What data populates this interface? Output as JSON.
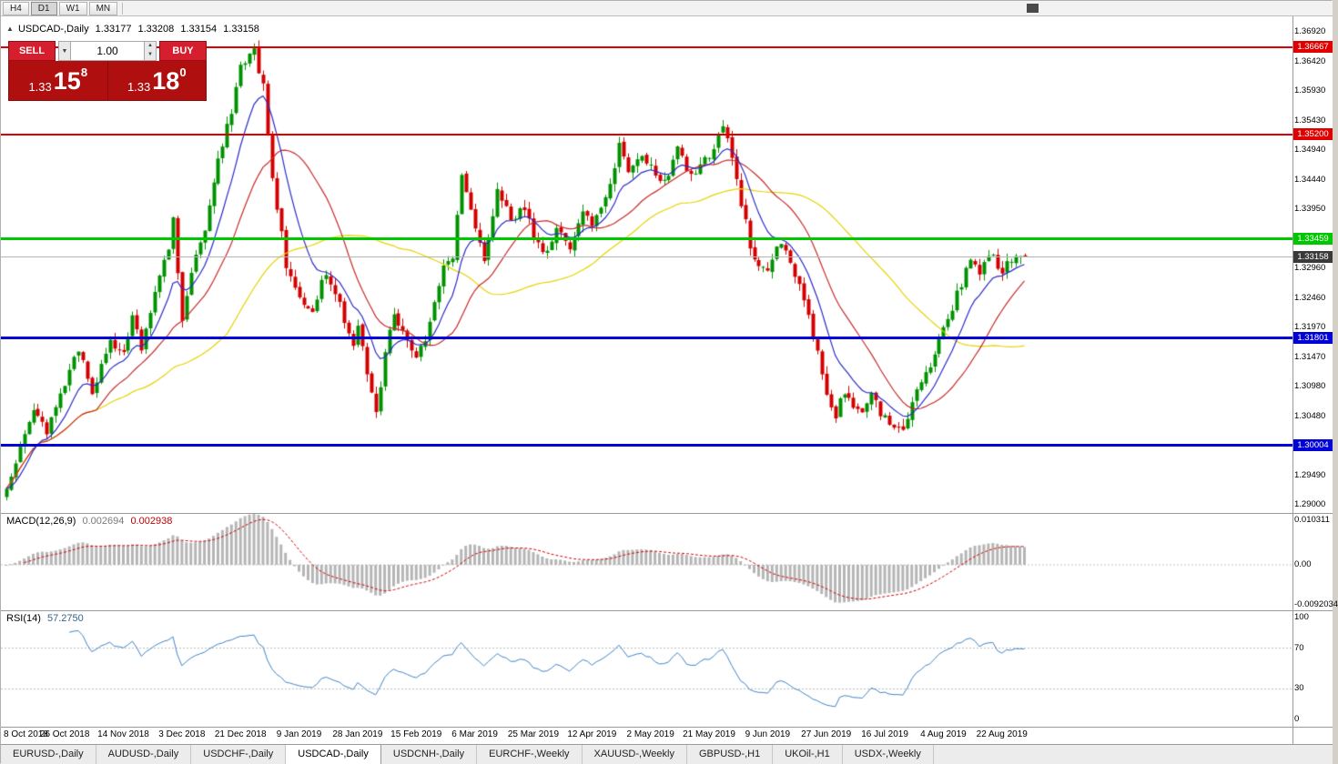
{
  "icons": {
    "collapse_arrow": "▲",
    "dropdown_arrow": "▼",
    "spinner_up": "▲",
    "spinner_down": "▼"
  },
  "toolbar": {
    "timeframes": [
      {
        "label": "H4",
        "active": false
      },
      {
        "label": "D1",
        "active": true
      },
      {
        "label": "W1",
        "active": false
      },
      {
        "label": "MN",
        "active": false
      }
    ]
  },
  "chart_header": {
    "symbol_period": "USDCAD-,Daily",
    "open": "1.33177",
    "high": "1.33208",
    "low": "1.33154",
    "close": "1.33158"
  },
  "trade_panel": {
    "sell_label": "SELL",
    "buy_label": "BUY",
    "volume": "1.00",
    "sell_price": {
      "prefix": "1.33",
      "big": "15",
      "sup": "8"
    },
    "buy_price": {
      "prefix": "1.33",
      "big": "18",
      "sup": "0"
    }
  },
  "price_axis": {
    "ticks": [
      "1.36920",
      "1.36420",
      "1.35930",
      "1.35430",
      "1.34940",
      "1.34440",
      "1.33950",
      "1.32960",
      "1.32460",
      "1.31970",
      "1.31470",
      "1.30980",
      "1.30480",
      "1.29490",
      "1.29000"
    ]
  },
  "date_axis": [
    "8 Oct 2018",
    "26 Oct 2018",
    "14 Nov 2018",
    "3 Dec 2018",
    "21 Dec 2018",
    "9 Jan 2019",
    "28 Jan 2019",
    "15 Feb 2019",
    "6 Mar 2019",
    "25 Mar 2019",
    "12 Apr 2019",
    "2 May 2019",
    "21 May 2019",
    "9 Jun 2019",
    "27 Jun 2019",
    "16 Jul 2019",
    "4 Aug 2019",
    "22 Aug 2019"
  ],
  "tabs": [
    {
      "label": "EURUSD-,Daily",
      "active": false
    },
    {
      "label": "AUDUSD-,Daily",
      "active": false
    },
    {
      "label": "USDCHF-,Daily",
      "active": false
    },
    {
      "label": "USDCAD-,Daily",
      "active": true
    },
    {
      "label": "USDCNH-,Daily",
      "active": false
    },
    {
      "label": "EURCHF-,Weekly",
      "active": false
    },
    {
      "label": "XAUUSD-,Weekly",
      "active": false
    },
    {
      "label": "GBPUSD-,H1",
      "active": false
    },
    {
      "label": "UKOil-,H1",
      "active": false
    },
    {
      "label": "USDX-,Weekly",
      "active": false
    }
  ],
  "colors": {
    "bull": "#009200",
    "bear": "#d40000",
    "ma_fast": "#2a2ac8",
    "ma_medium": "#c82a2a",
    "ma_slow": "#e6d200",
    "level_red": "#e00000",
    "level_green": "#00c800",
    "level_blue": "#0000d8",
    "bid_line": "#b4b4b4",
    "bid_tag_bg": "#3a3a3a",
    "macd_hist": "#b5b5b5",
    "macd_signal": "#cc0000",
    "rsi_line": "#3f84c4"
  },
  "chart_data": {
    "type": "candlestick",
    "symbol": "USDCAD-",
    "timeframe": "Daily",
    "bars": 227,
    "bars_per_x_tick": 13,
    "y_axis_range": [
      1.2886,
      1.3718
    ],
    "last_ohlc": {
      "open": 1.33177,
      "high": 1.33208,
      "low": 1.33154,
      "close": 1.33158
    },
    "close_path_anchors": [
      [
        0,
        1.2925
      ],
      [
        3,
        1.3
      ],
      [
        6,
        1.3062
      ],
      [
        9,
        1.302
      ],
      [
        13,
        1.3105
      ],
      [
        16,
        1.3162
      ],
      [
        19,
        1.3082
      ],
      [
        23,
        1.3175
      ],
      [
        26,
        1.3152
      ],
      [
        28,
        1.3222
      ],
      [
        30,
        1.3155
      ],
      [
        33,
        1.3262
      ],
      [
        36,
        1.333
      ],
      [
        37,
        1.3378
      ],
      [
        39,
        1.3205
      ],
      [
        41,
        1.3292
      ],
      [
        44,
        1.336
      ],
      [
        47,
        1.3472
      ],
      [
        50,
        1.3562
      ],
      [
        52,
        1.3638
      ],
      [
        55,
        1.3662
      ],
      [
        57,
        1.3598
      ],
      [
        59,
        1.3452
      ],
      [
        62,
        1.3302
      ],
      [
        65,
        1.3242
      ],
      [
        68,
        1.3222
      ],
      [
        71,
        1.3292
      ],
      [
        74,
        1.3232
      ],
      [
        77,
        1.3168
      ],
      [
        78,
        1.3205
      ],
      [
        80,
        1.3122
      ],
      [
        82,
        1.3048
      ],
      [
        84,
        1.3162
      ],
      [
        86,
        1.3222
      ],
      [
        88,
        1.3192
      ],
      [
        91,
        1.3152
      ],
      [
        93,
        1.3182
      ],
      [
        95,
        1.3242
      ],
      [
        97,
        1.3302
      ],
      [
        99,
        1.3312
      ],
      [
        101,
        1.3448
      ],
      [
        104,
        1.3362
      ],
      [
        106,
        1.3315
      ],
      [
        109,
        1.3422
      ],
      [
        112,
        1.3382
      ],
      [
        115,
        1.3392
      ],
      [
        117,
        1.3352
      ],
      [
        119,
        1.3315
      ],
      [
        122,
        1.3362
      ],
      [
        125,
        1.3335
      ],
      [
        128,
        1.3392
      ],
      [
        130,
        1.3362
      ],
      [
        133,
        1.3412
      ],
      [
        136,
        1.3498
      ],
      [
        138,
        1.3452
      ],
      [
        141,
        1.3482
      ],
      [
        143,
        1.3462
      ],
      [
        146,
        1.3442
      ],
      [
        149,
        1.3492
      ],
      [
        152,
        1.3452
      ],
      [
        156,
        1.3482
      ],
      [
        159,
        1.3538
      ],
      [
        161,
        1.3482
      ],
      [
        163,
        1.3402
      ],
      [
        166,
        1.3305
      ],
      [
        169,
        1.3292
      ],
      [
        171,
        1.3338
      ],
      [
        174,
        1.3312
      ],
      [
        177,
        1.3242
      ],
      [
        180,
        1.3152
      ],
      [
        182,
        1.3082
      ],
      [
        184,
        1.3052
      ],
      [
        186,
        1.3092
      ],
      [
        189,
        1.3052
      ],
      [
        192,
        1.3082
      ],
      [
        195,
        1.3042
      ],
      [
        198,
        1.3022
      ],
      [
        200,
        1.3038
      ],
      [
        202,
        1.3092
      ],
      [
        205,
        1.3132
      ],
      [
        208,
        1.3192
      ],
      [
        211,
        1.3252
      ],
      [
        214,
        1.3312
      ],
      [
        216,
        1.3282
      ],
      [
        218,
        1.3322
      ],
      [
        221,
        1.3292
      ],
      [
        223,
        1.3312
      ],
      [
        226,
        1.33158
      ]
    ],
    "moving_averages": [
      {
        "name": "fast",
        "period": 10,
        "method": "ema",
        "color_key": "ma_fast"
      },
      {
        "name": "medium",
        "period": 21,
        "method": "sma",
        "color_key": "ma_medium"
      },
      {
        "name": "slow",
        "period": 50,
        "method": "sma",
        "color_key": "ma_slow"
      }
    ],
    "levels": [
      {
        "value": 1.36667,
        "label": "1.36667",
        "color_key": "level_red",
        "thickness": 2
      },
      {
        "value": 1.352,
        "label": "1.35200",
        "color_key": "level_red",
        "thickness": 2
      },
      {
        "value": 1.33459,
        "label": "1.33459",
        "color_key": "level_green",
        "thickness": 3
      },
      {
        "value": 1.31801,
        "label": "1.31801",
        "color_key": "level_blue",
        "thickness": 3
      },
      {
        "value": 1.30004,
        "label": "1.30004",
        "color_key": "level_blue",
        "thickness": 3
      }
    ],
    "bid": {
      "value": 1.33158,
      "label": "1.33158"
    },
    "indicators": {
      "macd": {
        "label": "MACD(12,26,9)",
        "main_value": "0.002694",
        "signal_value": "0.002938",
        "fast": 12,
        "slow": 26,
        "signal": 9,
        "axis": [
          {
            "label": "0.010311",
            "value": 0.010311
          },
          {
            "label": "0.00",
            "value": 0
          },
          {
            "label": "-0.0092034",
            "value": -0.0092034
          }
        ]
      },
      "rsi": {
        "label": "RSI(14)",
        "value": "57.2750",
        "period": 14,
        "levels": [
          70,
          30
        ],
        "axis": [
          {
            "label": "100",
            "value": 100
          },
          {
            "label": "70",
            "value": 70
          },
          {
            "label": "30",
            "value": 30
          },
          {
            "label": "0",
            "value": 0
          }
        ]
      }
    }
  }
}
